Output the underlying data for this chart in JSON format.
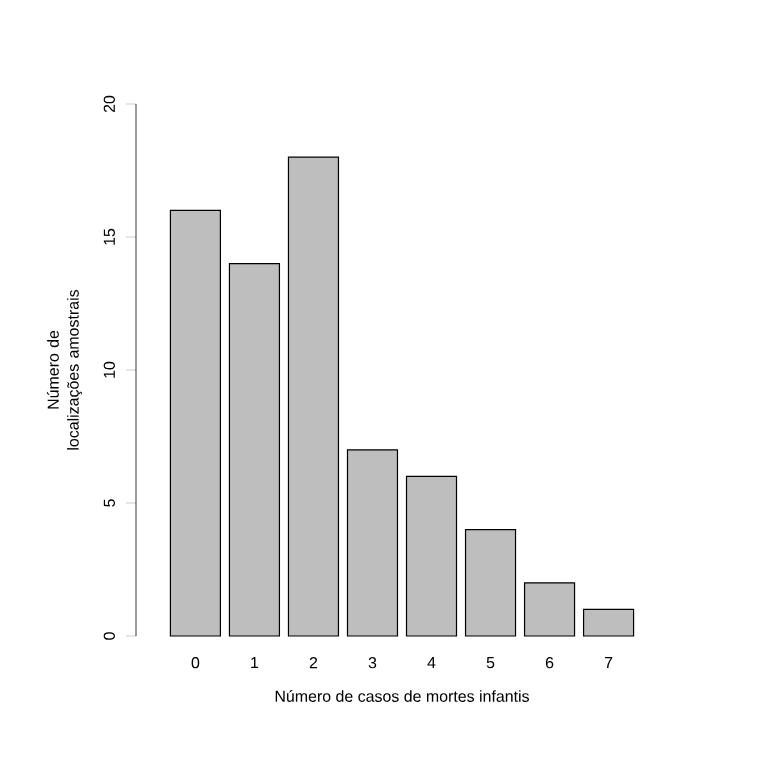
{
  "chart_data": {
    "type": "bar",
    "categories": [
      "0",
      "1",
      "2",
      "3",
      "4",
      "5",
      "6",
      "7"
    ],
    "values": [
      16,
      14,
      18,
      7,
      6,
      4,
      2,
      1
    ],
    "color": "#bebebe",
    "xlabel": "Número de casos de mortes infantis",
    "ylabel": "Número de localizações amostrais",
    "ylim": [
      0,
      20
    ],
    "yticks": [
      0,
      5,
      10,
      15,
      20
    ],
    "grid": false
  }
}
